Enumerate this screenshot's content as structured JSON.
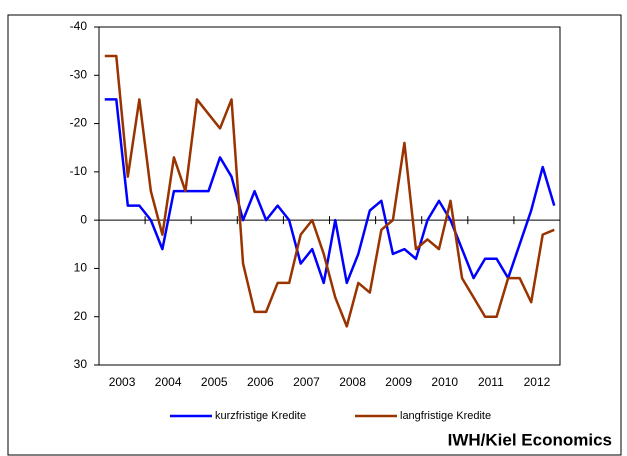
{
  "chart_data": {
    "type": "line",
    "categories": [
      null,
      "2003",
      null,
      null,
      null,
      "2004",
      null,
      null,
      null,
      "2005",
      null,
      null,
      null,
      "2006",
      null,
      null,
      null,
      "2007",
      null,
      null,
      null,
      "2008",
      null,
      null,
      null,
      "2009",
      null,
      null,
      null,
      "2010",
      null,
      null,
      null,
      "2011",
      null,
      null,
      null,
      "2012",
      null,
      null
    ],
    "series": [
      {
        "name": "kurzfristige Kredite",
        "color": "#0000ff",
        "values": [
          -25,
          -25,
          -3,
          -3,
          0,
          6,
          -6,
          -6,
          -6,
          -6,
          -13,
          -9,
          0,
          -6,
          0,
          -3,
          0,
          9,
          6,
          13,
          0,
          13,
          7,
          -2,
          -4,
          7,
          6,
          8,
          0,
          -4,
          0,
          6,
          12,
          8,
          8,
          12,
          5,
          -2,
          -11,
          -3
        ]
      },
      {
        "name": "langfristige Kredite",
        "color": "#993300",
        "values": [
          -34,
          -34,
          -9,
          -25,
          -6,
          3,
          -13,
          -6,
          -25,
          -22,
          -19,
          -25,
          9,
          19,
          19,
          13,
          13,
          3,
          0,
          7,
          16,
          22,
          13,
          15,
          2,
          0,
          -16,
          6,
          4,
          6,
          -4,
          12,
          16,
          20,
          20,
          12,
          12,
          17,
          3,
          2
        ]
      }
    ],
    "ylim": [
      -40,
      30
    ],
    "yticks": [
      -40,
      -30,
      -20,
      -10,
      0,
      10,
      20,
      30
    ],
    "y_reversed": true,
    "legend": "bottom",
    "source": "IWH/Kiel Economics"
  }
}
